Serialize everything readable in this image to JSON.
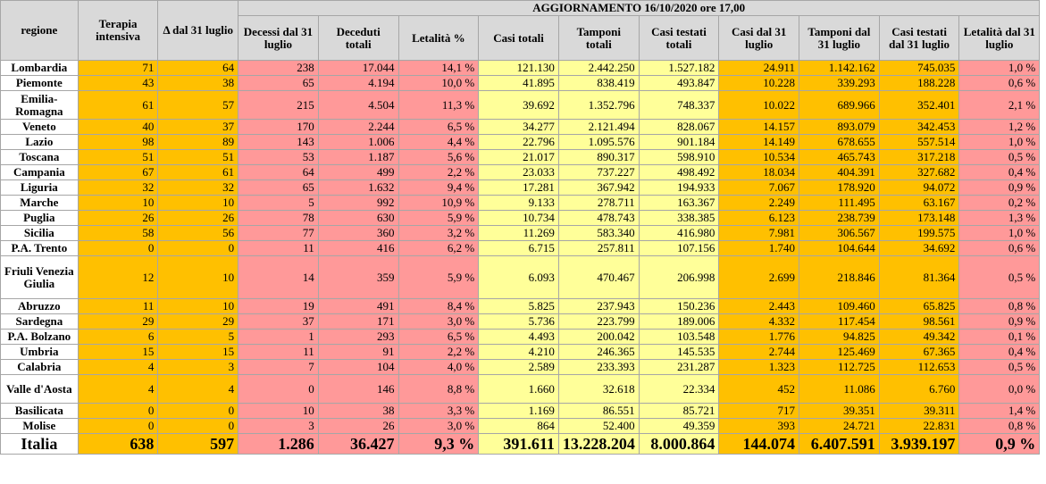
{
  "header": {
    "regione": "regione",
    "update_title": "AGGIORNAMENTO 16/10/2020 ore 17,00",
    "columns": [
      "Terapia intensiva",
      "Δ dal 31 luglio",
      "Decessi dal 31 luglio",
      "Deceduti totali",
      "Letalità %",
      "Casi totali",
      "Tamponi totali",
      "Casi testati totali",
      "Casi dal 31 luglio",
      "Tamponi dal 31 luglio",
      "Casi testati dal 31 luglio",
      "Letalità dal 31 luglio"
    ]
  },
  "colors": {
    "orange": "#ffc000",
    "pink": "#ff9999",
    "yellow": "#ffff99",
    "header_gray": "#d9d9d9"
  },
  "rows": [
    {
      "name": "Lombardia",
      "h": 1,
      "v": [
        "71",
        "64",
        "238",
        "17.044",
        "14,1 %",
        "121.130",
        "2.442.250",
        "1.527.182",
        "24.911",
        "1.142.162",
        "745.035",
        "1,0 %"
      ]
    },
    {
      "name": "Piemonte",
      "h": 1,
      "v": [
        "43",
        "38",
        "65",
        "4.194",
        "10,0 %",
        "41.895",
        "838.419",
        "493.847",
        "10.228",
        "339.293",
        "188.228",
        "0,6 %"
      ]
    },
    {
      "name": "Emilia-Romagna",
      "h": 2,
      "v": [
        "61",
        "57",
        "215",
        "4.504",
        "11,3 %",
        "39.692",
        "1.352.796",
        "748.337",
        "10.022",
        "689.966",
        "352.401",
        "2,1 %"
      ]
    },
    {
      "name": "Veneto",
      "h": 1,
      "v": [
        "40",
        "37",
        "170",
        "2.244",
        "6,5 %",
        "34.277",
        "2.121.494",
        "828.067",
        "14.157",
        "893.079",
        "342.453",
        "1,2 %"
      ]
    },
    {
      "name": "Lazio",
      "h": 1,
      "v": [
        "98",
        "89",
        "143",
        "1.006",
        "4,4 %",
        "22.796",
        "1.095.576",
        "901.184",
        "14.149",
        "678.655",
        "557.514",
        "1,0 %"
      ]
    },
    {
      "name": "Toscana",
      "h": 1,
      "v": [
        "51",
        "51",
        "53",
        "1.187",
        "5,6 %",
        "21.017",
        "890.317",
        "598.910",
        "10.534",
        "465.743",
        "317.218",
        "0,5 %"
      ]
    },
    {
      "name": "Campania",
      "h": 1,
      "v": [
        "67",
        "61",
        "64",
        "499",
        "2,2 %",
        "23.033",
        "737.227",
        "498.492",
        "18.034",
        "404.391",
        "327.682",
        "0,4 %"
      ]
    },
    {
      "name": "Liguria",
      "h": 1,
      "v": [
        "32",
        "32",
        "65",
        "1.632",
        "9,4 %",
        "17.281",
        "367.942",
        "194.933",
        "7.067",
        "178.920",
        "94.072",
        "0,9 %"
      ]
    },
    {
      "name": "Marche",
      "h": 1,
      "v": [
        "10",
        "10",
        "5",
        "992",
        "10,9 %",
        "9.133",
        "278.711",
        "163.367",
        "2.249",
        "111.495",
        "63.167",
        "0,2 %"
      ]
    },
    {
      "name": "Puglia",
      "h": 1,
      "v": [
        "26",
        "26",
        "78",
        "630",
        "5,9 %",
        "10.734",
        "478.743",
        "338.385",
        "6.123",
        "238.739",
        "173.148",
        "1,3 %"
      ]
    },
    {
      "name": "Sicilia",
      "h": 1,
      "v": [
        "58",
        "56",
        "77",
        "360",
        "3,2 %",
        "11.269",
        "583.340",
        "416.980",
        "7.981",
        "306.567",
        "199.575",
        "1,0 %"
      ]
    },
    {
      "name": "P.A. Trento",
      "h": 1,
      "v": [
        "0",
        "0",
        "11",
        "416",
        "6,2 %",
        "6.715",
        "257.811",
        "107.156",
        "1.740",
        "104.644",
        "34.692",
        "0,6 %"
      ]
    },
    {
      "name": "Friuli Venezia Giulia",
      "h": 3,
      "v": [
        "12",
        "10",
        "14",
        "359",
        "5,9 %",
        "6.093",
        "470.467",
        "206.998",
        "2.699",
        "218.846",
        "81.364",
        "0,5 %"
      ]
    },
    {
      "name": "Abruzzo",
      "h": 1,
      "v": [
        "11",
        "10",
        "19",
        "491",
        "8,4 %",
        "5.825",
        "237.943",
        "150.236",
        "2.443",
        "109.460",
        "65.825",
        "0,8 %"
      ]
    },
    {
      "name": "Sardegna",
      "h": 1,
      "v": [
        "29",
        "29",
        "37",
        "171",
        "3,0 %",
        "5.736",
        "223.799",
        "189.006",
        "4.332",
        "117.454",
        "98.561",
        "0,9 %"
      ]
    },
    {
      "name": "P.A. Bolzano",
      "h": 1,
      "v": [
        "6",
        "5",
        "1",
        "293",
        "6,5 %",
        "4.493",
        "200.042",
        "103.548",
        "1.776",
        "94.825",
        "49.342",
        "0,1 %"
      ]
    },
    {
      "name": "Umbria",
      "h": 1,
      "v": [
        "15",
        "15",
        "11",
        "91",
        "2,2 %",
        "4.210",
        "246.365",
        "145.535",
        "2.744",
        "125.469",
        "67.365",
        "0,4 %"
      ]
    },
    {
      "name": "Calabria",
      "h": 1,
      "v": [
        "4",
        "3",
        "7",
        "104",
        "4,0 %",
        "2.589",
        "233.393",
        "231.287",
        "1.323",
        "112.725",
        "112.653",
        "0,5 %"
      ]
    },
    {
      "name": "Valle d'Aosta",
      "h": 2,
      "v": [
        "4",
        "4",
        "0",
        "146",
        "8,8 %",
        "1.660",
        "32.618",
        "22.334",
        "452",
        "11.086",
        "6.760",
        "0,0 %"
      ]
    },
    {
      "name": "Basilicata",
      "h": 1,
      "v": [
        "0",
        "0",
        "10",
        "38",
        "3,3 %",
        "1.169",
        "86.551",
        "85.721",
        "717",
        "39.351",
        "39.311",
        "1,4 %"
      ]
    },
    {
      "name": "Molise",
      "h": 1,
      "v": [
        "0",
        "0",
        "3",
        "26",
        "3,0 %",
        "864",
        "52.400",
        "49.359",
        "393",
        "24.721",
        "22.831",
        "0,8 %"
      ]
    }
  ],
  "total": {
    "name": "Italia",
    "v": [
      "638",
      "597",
      "1.286",
      "36.427",
      "9,3 %",
      "391.611",
      "13.228.204",
      "8.000.864",
      "144.074",
      "6.407.591",
      "3.939.197",
      "0,9 %"
    ]
  }
}
